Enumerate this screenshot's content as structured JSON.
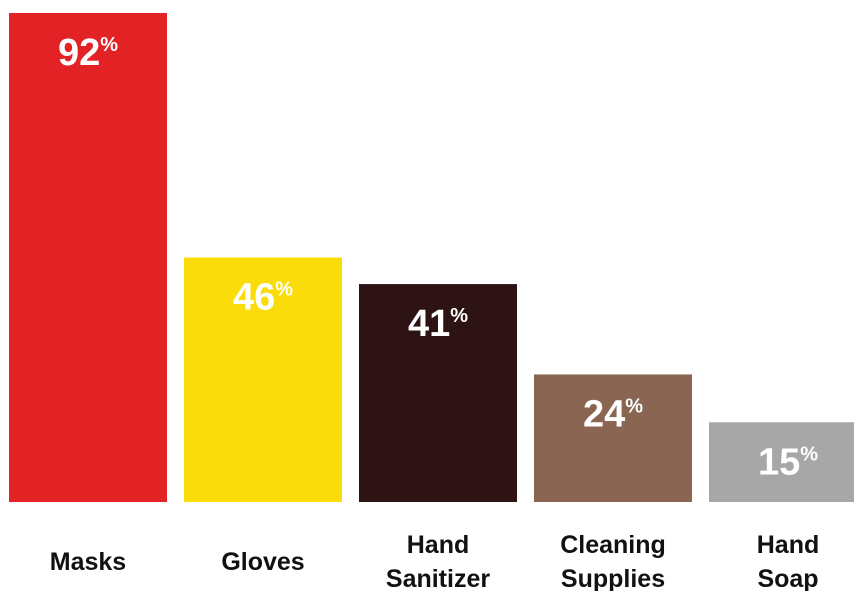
{
  "chart_data": {
    "type": "bar",
    "categories": [
      [
        "Masks"
      ],
      [
        "Gloves"
      ],
      [
        "Hand",
        "Sanitizer"
      ],
      [
        "Cleaning",
        "Supplies"
      ],
      [
        "Hand",
        "Soap"
      ]
    ],
    "values": [
      92,
      46,
      41,
      24,
      15
    ],
    "value_suffix": "%",
    "colors": [
      "#e32226",
      "#f9dc0a",
      "#2e1314",
      "#8a6552",
      "#a7a7a7"
    ],
    "ylim": [
      0,
      92
    ],
    "grid": false,
    "legend": "none"
  }
}
